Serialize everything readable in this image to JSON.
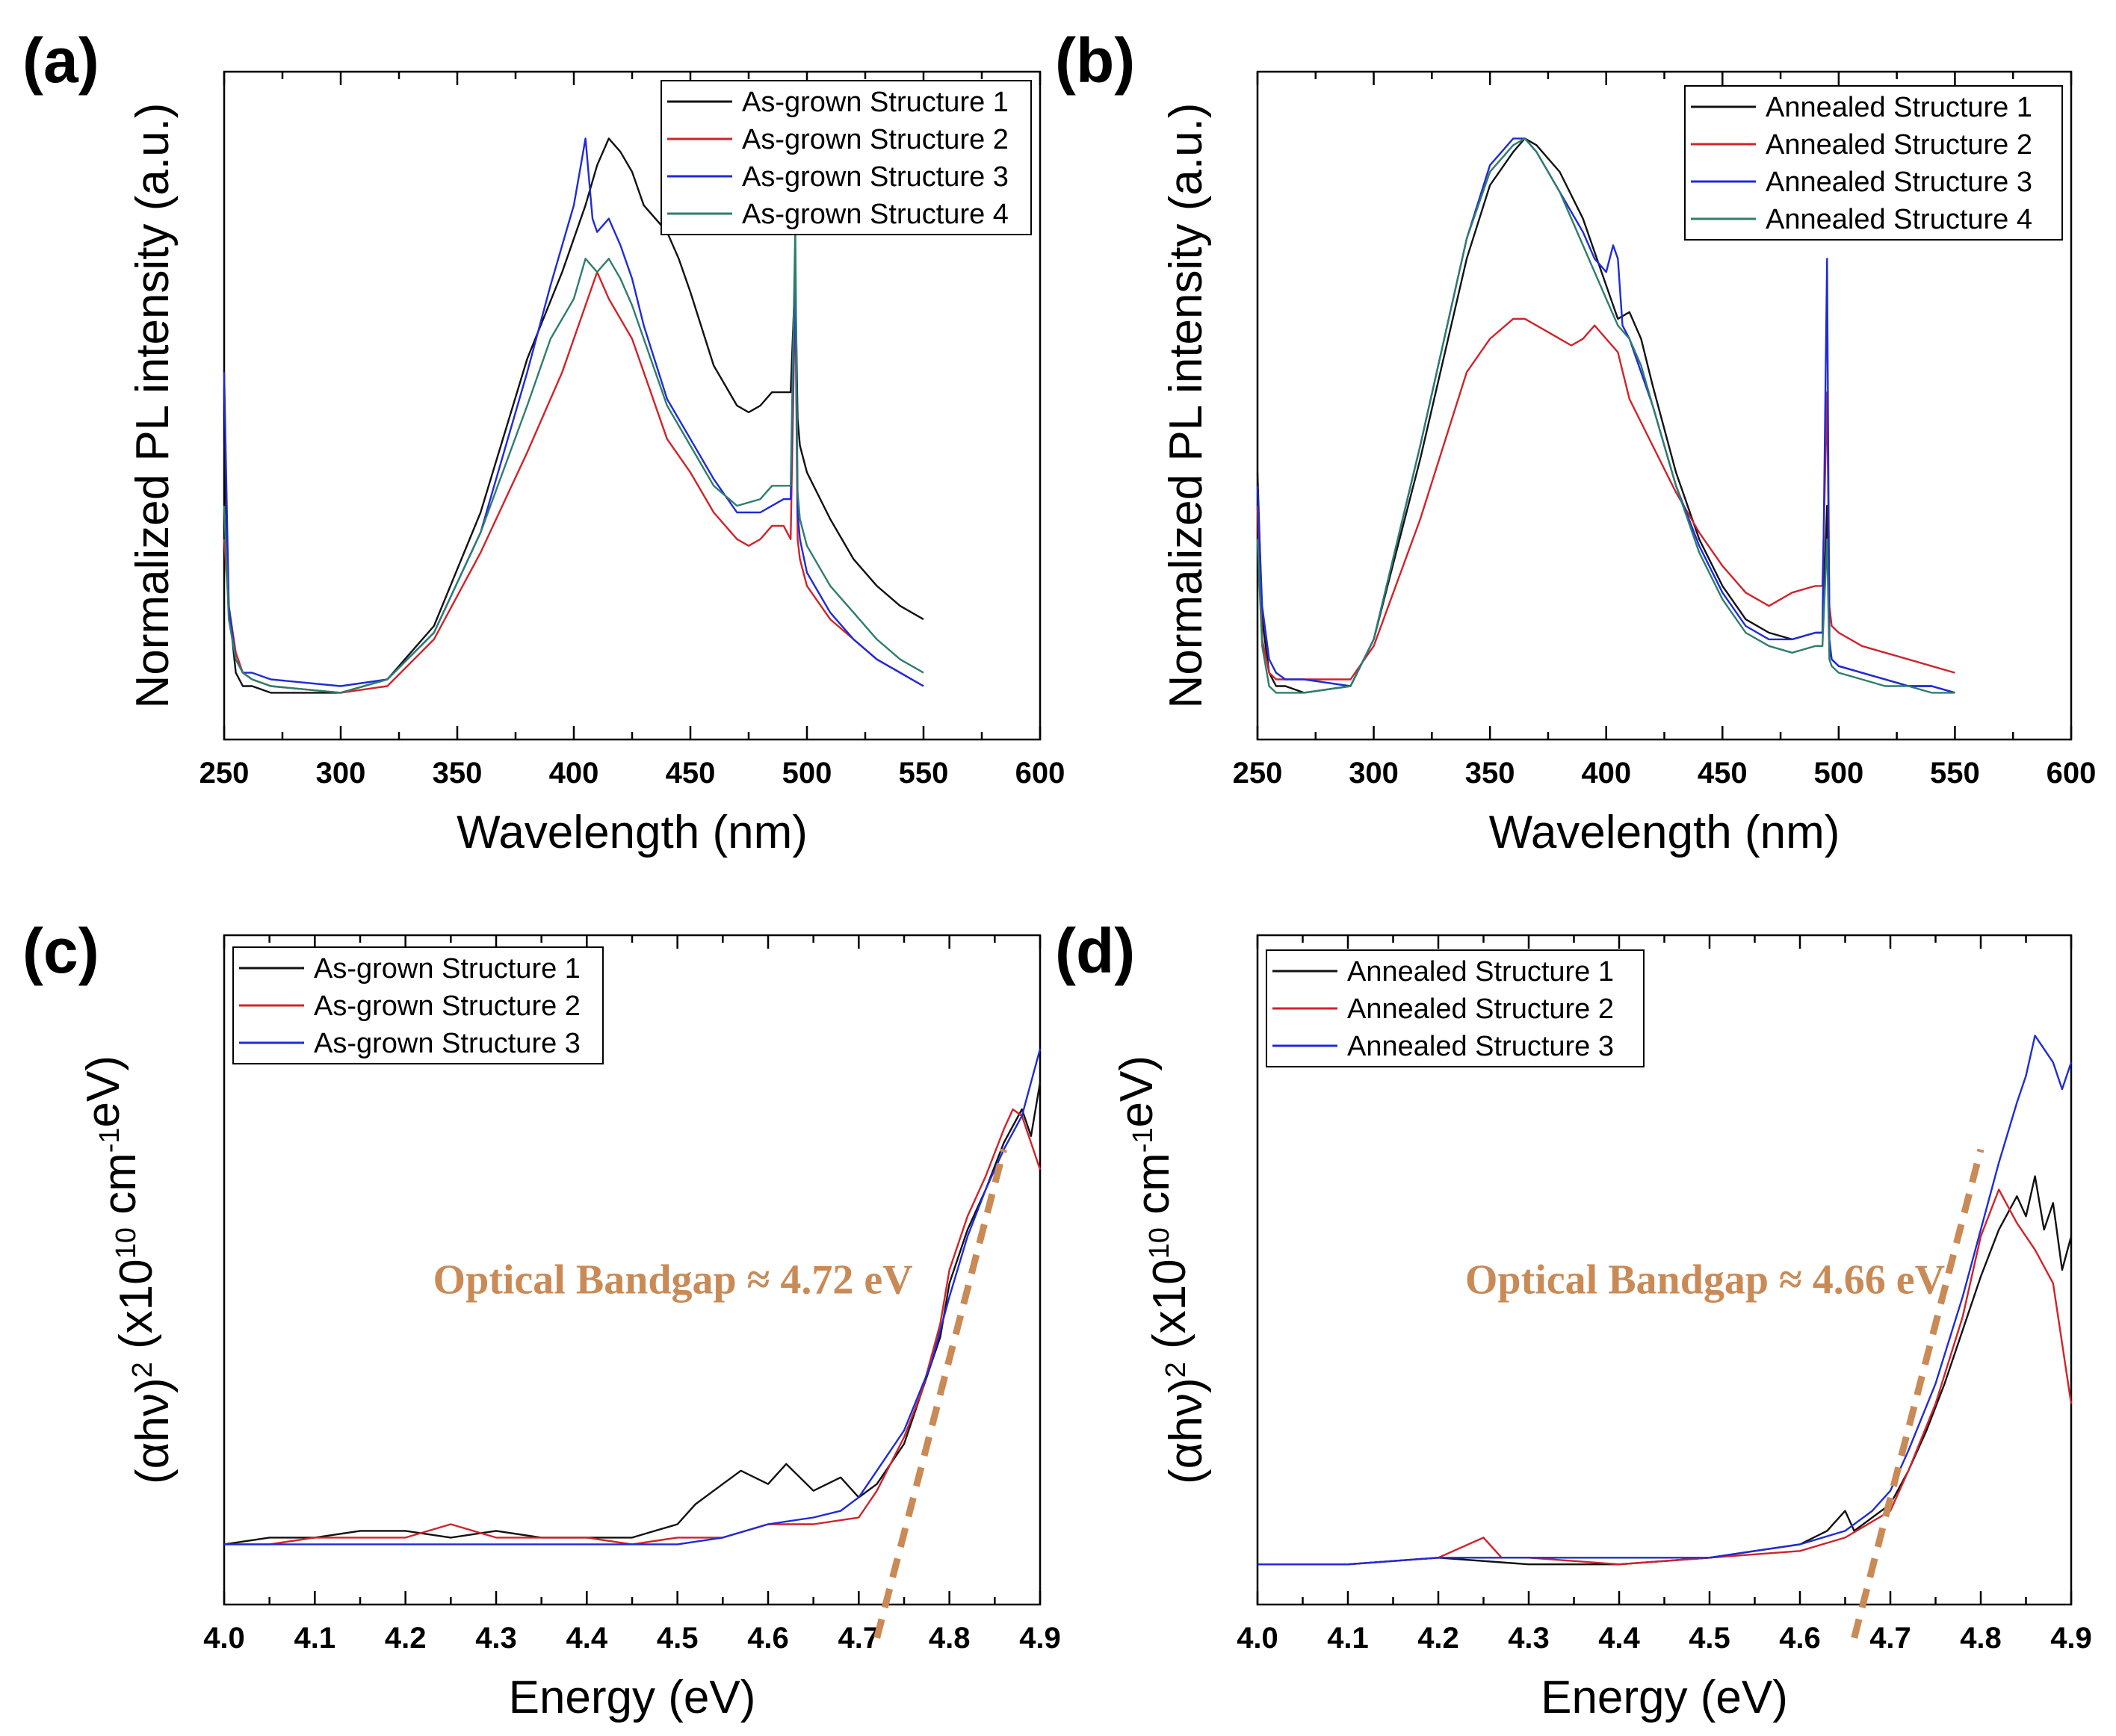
{
  "colors": {
    "black": "#111111",
    "red": "#d0232a",
    "blue": "#1f2bd8",
    "teal": "#2e7d6e",
    "annotation": "#c98a56"
  },
  "chart_data": [
    {
      "id": "a",
      "panel_label": "(a)",
      "type": "line",
      "xlabel": "Wavelength (nm)",
      "ylabel": "Normalized PL intensity (a.u.)",
      "xlim": [
        250,
        600
      ],
      "ylim": [
        0,
        1
      ],
      "xticks": [
        "250",
        "300",
        "350",
        "400",
        "450",
        "500",
        "550",
        "600"
      ],
      "series": [
        {
          "name": "As-grown Structure 1",
          "color": "black",
          "x": [
            250,
            252,
            255,
            258,
            262,
            270,
            300,
            320,
            340,
            360,
            380,
            395,
            405,
            410,
            415,
            420,
            425,
            430,
            440,
            445,
            450,
            460,
            470,
            475,
            480,
            485,
            490,
            493,
            495,
            496,
            497,
            500,
            510,
            520,
            530,
            540,
            550
          ],
          "y": [
            0.45,
            0.2,
            0.1,
            0.08,
            0.08,
            0.07,
            0.07,
            0.09,
            0.17,
            0.34,
            0.57,
            0.7,
            0.8,
            0.86,
            0.9,
            0.88,
            0.85,
            0.8,
            0.76,
            0.72,
            0.67,
            0.56,
            0.5,
            0.49,
            0.5,
            0.52,
            0.52,
            0.52,
            0.7,
            0.48,
            0.44,
            0.4,
            0.33,
            0.27,
            0.23,
            0.2,
            0.18
          ]
        },
        {
          "name": "As-grown Structure 2",
          "color": "red",
          "x": [
            250,
            252,
            255,
            258,
            262,
            270,
            300,
            320,
            340,
            360,
            380,
            395,
            405,
            410,
            415,
            420,
            425,
            430,
            440,
            450,
            460,
            470,
            475,
            480,
            485,
            490,
            493,
            495,
            496,
            497,
            500,
            510,
            520,
            530,
            540,
            550
          ],
          "y": [
            0.3,
            0.2,
            0.13,
            0.1,
            0.09,
            0.08,
            0.07,
            0.08,
            0.15,
            0.28,
            0.43,
            0.55,
            0.65,
            0.7,
            0.66,
            0.63,
            0.6,
            0.55,
            0.45,
            0.4,
            0.34,
            0.3,
            0.29,
            0.3,
            0.32,
            0.32,
            0.3,
            0.68,
            0.3,
            0.27,
            0.23,
            0.18,
            0.15,
            0.12,
            0.1,
            0.08
          ]
        },
        {
          "name": "As-grown Structure 3",
          "color": "blue",
          "x": [
            250,
            252,
            255,
            258,
            262,
            270,
            300,
            320,
            340,
            360,
            380,
            390,
            395,
            400,
            403,
            405,
            408,
            410,
            415,
            420,
            425,
            430,
            440,
            450,
            460,
            470,
            480,
            485,
            490,
            493,
            495,
            496,
            497,
            500,
            510,
            520,
            530,
            540,
            550
          ],
          "y": [
            0.55,
            0.2,
            0.12,
            0.1,
            0.1,
            0.09,
            0.08,
            0.09,
            0.16,
            0.31,
            0.55,
            0.68,
            0.74,
            0.8,
            0.86,
            0.9,
            0.78,
            0.76,
            0.78,
            0.74,
            0.69,
            0.62,
            0.51,
            0.45,
            0.39,
            0.34,
            0.34,
            0.35,
            0.36,
            0.36,
            0.7,
            0.34,
            0.3,
            0.25,
            0.19,
            0.15,
            0.12,
            0.1,
            0.08
          ]
        },
        {
          "name": "As-grown Structure 4",
          "color": "teal",
          "x": [
            250,
            252,
            255,
            258,
            262,
            270,
            300,
            320,
            340,
            360,
            380,
            390,
            400,
            405,
            410,
            415,
            420,
            425,
            430,
            440,
            450,
            460,
            470,
            480,
            485,
            490,
            493,
            495,
            496,
            497,
            500,
            510,
            520,
            530,
            540,
            550
          ],
          "y": [
            0.35,
            0.18,
            0.12,
            0.1,
            0.09,
            0.08,
            0.07,
            0.09,
            0.16,
            0.31,
            0.5,
            0.6,
            0.66,
            0.72,
            0.7,
            0.72,
            0.69,
            0.65,
            0.6,
            0.5,
            0.44,
            0.38,
            0.35,
            0.36,
            0.38,
            0.38,
            0.38,
            0.77,
            0.37,
            0.33,
            0.29,
            0.23,
            0.19,
            0.15,
            0.12,
            0.1
          ]
        }
      ]
    },
    {
      "id": "b",
      "panel_label": "(b)",
      "type": "line",
      "xlabel": "Wavelength (nm)",
      "ylabel": "Normalized PL intensity (a.u.)",
      "xlim": [
        250,
        600
      ],
      "ylim": [
        0,
        1
      ],
      "xticks": [
        "250",
        "300",
        "350",
        "400",
        "450",
        "500",
        "550",
        "600"
      ],
      "series": [
        {
          "name": "Annealed Structure 1",
          "color": "black",
          "x": [
            250,
            252,
            255,
            258,
            262,
            270,
            290,
            300,
            320,
            340,
            350,
            360,
            365,
            370,
            380,
            390,
            400,
            405,
            410,
            415,
            420,
            430,
            440,
            450,
            460,
            470,
            480,
            490,
            493,
            495,
            496,
            497,
            500,
            510,
            520,
            530,
            540,
            550
          ],
          "y": [
            0.4,
            0.18,
            0.1,
            0.08,
            0.08,
            0.07,
            0.08,
            0.15,
            0.42,
            0.72,
            0.83,
            0.88,
            0.9,
            0.89,
            0.85,
            0.78,
            0.68,
            0.63,
            0.64,
            0.6,
            0.53,
            0.4,
            0.3,
            0.23,
            0.18,
            0.16,
            0.15,
            0.16,
            0.16,
            0.35,
            0.14,
            0.12,
            0.11,
            0.1,
            0.09,
            0.08,
            0.08,
            0.07
          ]
        },
        {
          "name": "Annealed Structure 2",
          "color": "red",
          "x": [
            250,
            252,
            255,
            258,
            262,
            270,
            290,
            300,
            320,
            340,
            350,
            360,
            365,
            370,
            380,
            385,
            390,
            395,
            400,
            405,
            410,
            420,
            430,
            440,
            450,
            460,
            470,
            480,
            490,
            493,
            495,
            496,
            497,
            500,
            510,
            520,
            530,
            540,
            550
          ],
          "y": [
            0.35,
            0.15,
            0.1,
            0.09,
            0.09,
            0.09,
            0.09,
            0.14,
            0.33,
            0.55,
            0.6,
            0.63,
            0.63,
            0.62,
            0.6,
            0.59,
            0.6,
            0.62,
            0.6,
            0.58,
            0.51,
            0.44,
            0.37,
            0.31,
            0.26,
            0.22,
            0.2,
            0.22,
            0.23,
            0.23,
            0.52,
            0.2,
            0.17,
            0.16,
            0.14,
            0.13,
            0.12,
            0.11,
            0.1
          ]
        },
        {
          "name": "Annealed Structure 3",
          "color": "blue",
          "x": [
            250,
            252,
            255,
            258,
            262,
            270,
            290,
            300,
            320,
            340,
            350,
            360,
            365,
            370,
            380,
            390,
            395,
            400,
            403,
            405,
            407,
            410,
            415,
            420,
            430,
            440,
            450,
            460,
            470,
            480,
            490,
            493,
            495,
            496,
            497,
            500,
            510,
            520,
            530,
            540,
            550
          ],
          "y": [
            0.38,
            0.2,
            0.12,
            0.1,
            0.09,
            0.09,
            0.08,
            0.15,
            0.44,
            0.75,
            0.86,
            0.9,
            0.9,
            0.88,
            0.82,
            0.76,
            0.72,
            0.7,
            0.74,
            0.72,
            0.62,
            0.6,
            0.55,
            0.5,
            0.38,
            0.29,
            0.22,
            0.17,
            0.15,
            0.15,
            0.16,
            0.16,
            0.72,
            0.15,
            0.12,
            0.11,
            0.1,
            0.09,
            0.08,
            0.08,
            0.07
          ]
        },
        {
          "name": "Annealed Structure 4",
          "color": "teal",
          "x": [
            250,
            252,
            255,
            258,
            262,
            270,
            290,
            300,
            320,
            340,
            350,
            360,
            365,
            370,
            380,
            390,
            400,
            405,
            410,
            415,
            420,
            430,
            440,
            450,
            460,
            470,
            480,
            490,
            493,
            495,
            496,
            497,
            500,
            510,
            520,
            530,
            540,
            550
          ],
          "y": [
            0.3,
            0.14,
            0.08,
            0.07,
            0.07,
            0.07,
            0.08,
            0.15,
            0.44,
            0.75,
            0.85,
            0.89,
            0.9,
            0.88,
            0.82,
            0.74,
            0.66,
            0.62,
            0.6,
            0.56,
            0.5,
            0.38,
            0.28,
            0.21,
            0.16,
            0.14,
            0.13,
            0.14,
            0.14,
            0.3,
            0.12,
            0.11,
            0.1,
            0.09,
            0.08,
            0.08,
            0.07,
            0.07
          ]
        }
      ]
    },
    {
      "id": "c",
      "panel_label": "(c)",
      "type": "line",
      "xlabel": "Energy (eV)",
      "ylabel": "(αhν)^2 (x10^10 cm^-1eV)",
      "xlim": [
        4.0,
        4.9
      ],
      "ylim": [
        0,
        1
      ],
      "xticks": [
        "4.0",
        "4.1",
        "4.2",
        "4.3",
        "4.4",
        "4.5",
        "4.6",
        "4.7",
        "4.8",
        "4.9"
      ],
      "annotation": {
        "text": "Optical Bandgap ≈ 4.72 eV",
        "value": 4.72
      },
      "series": [
        {
          "name": "As-grown Structure 1",
          "color": "black",
          "x": [
            4.0,
            4.05,
            4.1,
            4.15,
            4.2,
            4.25,
            4.3,
            4.35,
            4.4,
            4.45,
            4.5,
            4.52,
            4.55,
            4.57,
            4.6,
            4.62,
            4.65,
            4.68,
            4.7,
            4.72,
            4.75,
            4.77,
            4.79,
            4.8,
            4.82,
            4.84,
            4.86,
            4.88,
            4.89,
            4.9
          ],
          "y": [
            0.09,
            0.1,
            0.1,
            0.11,
            0.11,
            0.1,
            0.11,
            0.1,
            0.1,
            0.1,
            0.12,
            0.15,
            0.18,
            0.2,
            0.18,
            0.21,
            0.17,
            0.19,
            0.16,
            0.18,
            0.24,
            0.32,
            0.4,
            0.48,
            0.56,
            0.62,
            0.69,
            0.74,
            0.7,
            0.78
          ]
        },
        {
          "name": "As-grown Structure 2",
          "color": "red",
          "x": [
            4.0,
            4.05,
            4.1,
            4.15,
            4.2,
            4.25,
            4.3,
            4.35,
            4.4,
            4.45,
            4.5,
            4.55,
            4.6,
            4.65,
            4.7,
            4.72,
            4.75,
            4.77,
            4.79,
            4.8,
            4.82,
            4.84,
            4.86,
            4.87,
            4.88,
            4.89,
            4.9
          ],
          "y": [
            0.09,
            0.09,
            0.1,
            0.1,
            0.1,
            0.12,
            0.1,
            0.1,
            0.1,
            0.09,
            0.1,
            0.1,
            0.12,
            0.12,
            0.13,
            0.17,
            0.25,
            0.32,
            0.42,
            0.5,
            0.58,
            0.64,
            0.71,
            0.74,
            0.73,
            0.69,
            0.65
          ]
        },
        {
          "name": "As-grown Structure 3",
          "color": "blue",
          "x": [
            4.0,
            4.1,
            4.2,
            4.3,
            4.4,
            4.5,
            4.55,
            4.6,
            4.65,
            4.68,
            4.7,
            4.72,
            4.75,
            4.78,
            4.8,
            4.82,
            4.84,
            4.86,
            4.88,
            4.9
          ],
          "y": [
            0.09,
            0.09,
            0.09,
            0.09,
            0.09,
            0.09,
            0.1,
            0.12,
            0.13,
            0.14,
            0.16,
            0.2,
            0.26,
            0.36,
            0.46,
            0.55,
            0.62,
            0.68,
            0.73,
            0.83
          ]
        }
      ]
    },
    {
      "id": "d",
      "panel_label": "(d)",
      "type": "line",
      "xlabel": "Energy (eV)",
      "ylabel": "(αhν)^2 (x10^10 cm^-1eV)",
      "xlim": [
        4.0,
        4.9
      ],
      "ylim": [
        0,
        1
      ],
      "xticks": [
        "4.0",
        "4.1",
        "4.2",
        "4.3",
        "4.4",
        "4.5",
        "4.6",
        "4.7",
        "4.8",
        "4.9"
      ],
      "annotation": {
        "text": "Optical Bandgap ≈ 4.66 eV",
        "value": 4.66
      },
      "series": [
        {
          "name": "Annealed Structure 1",
          "color": "black",
          "x": [
            4.0,
            4.1,
            4.2,
            4.3,
            4.4,
            4.5,
            4.55,
            4.6,
            4.63,
            4.65,
            4.66,
            4.68,
            4.7,
            4.72,
            4.74,
            4.76,
            4.78,
            4.8,
            4.82,
            4.84,
            4.85,
            4.86,
            4.87,
            4.88,
            4.89,
            4.9
          ],
          "y": [
            0.06,
            0.06,
            0.07,
            0.06,
            0.06,
            0.07,
            0.08,
            0.09,
            0.11,
            0.14,
            0.11,
            0.13,
            0.15,
            0.2,
            0.26,
            0.33,
            0.41,
            0.49,
            0.56,
            0.61,
            0.58,
            0.64,
            0.56,
            0.6,
            0.5,
            0.55
          ]
        },
        {
          "name": "Annealed Structure 2",
          "color": "red",
          "x": [
            4.0,
            4.1,
            4.2,
            4.25,
            4.27,
            4.3,
            4.4,
            4.5,
            4.6,
            4.65,
            4.7,
            4.72,
            4.75,
            4.78,
            4.8,
            4.82,
            4.84,
            4.86,
            4.88,
            4.9
          ],
          "y": [
            0.06,
            0.06,
            0.07,
            0.1,
            0.07,
            0.07,
            0.06,
            0.07,
            0.08,
            0.1,
            0.14,
            0.2,
            0.3,
            0.43,
            0.55,
            0.62,
            0.57,
            0.53,
            0.48,
            0.3
          ]
        },
        {
          "name": "Annealed Structure 3",
          "color": "blue",
          "x": [
            4.0,
            4.1,
            4.2,
            4.3,
            4.4,
            4.5,
            4.55,
            4.6,
            4.65,
            4.68,
            4.7,
            4.72,
            4.75,
            4.78,
            4.8,
            4.82,
            4.84,
            4.85,
            4.86,
            4.88,
            4.89,
            4.9
          ],
          "y": [
            0.06,
            0.06,
            0.07,
            0.07,
            0.07,
            0.07,
            0.08,
            0.09,
            0.11,
            0.14,
            0.17,
            0.23,
            0.33,
            0.46,
            0.56,
            0.66,
            0.75,
            0.79,
            0.85,
            0.81,
            0.77,
            0.81
          ]
        }
      ]
    }
  ]
}
